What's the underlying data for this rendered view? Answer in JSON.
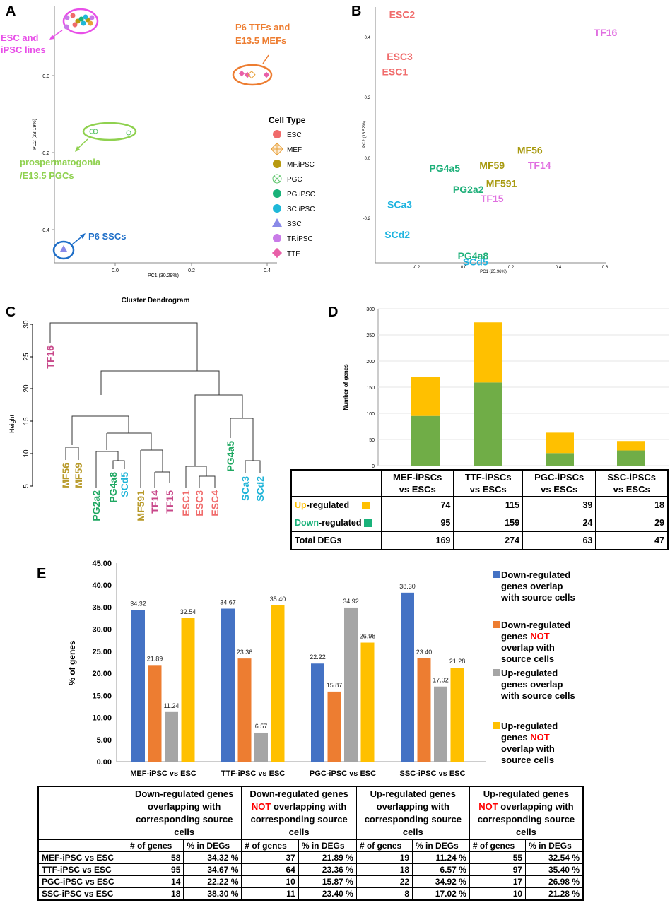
{
  "panels": {
    "a": "A",
    "b": "B",
    "c": "C",
    "d": "D",
    "e": "E"
  },
  "colors": {
    "esc": "#f06b6b",
    "mef": "#e8a03a",
    "mfipsc": "#b89a10",
    "pgc": "#5cc46a",
    "pgipsc": "#19b27a",
    "scipsc": "#1fb8d8",
    "ssc": "#8a8ae8",
    "tfipsc": "#c97be8",
    "ttf": "#e85fa8",
    "up": "#ffc000",
    "down": "#70ad47",
    "blue": "#4472c4",
    "orange": "#ed7d31",
    "gray": "#a5a5a5",
    "yellow": "#ffc000"
  },
  "panelA": {
    "xlabel": "PC1 (30.29%)",
    "ylabel": "PC2 (23.19%)",
    "xticks": [
      "0.0",
      "0.2",
      "0.4"
    ],
    "yticks": [
      "0.0",
      "-0.2",
      "-0.4"
    ],
    "ann_esc_l1": "ESC and",
    "ann_esc_l2": "iPSC lines",
    "ann_p6_l1": "P6 TTFs and",
    "ann_p6_l2": "E13.5 MEFs",
    "ann_pro_l1": "prospermatogonia",
    "ann_pro_l2": "/E13.5 PGCs",
    "ann_ssc": "P6 SSCs",
    "legend_title": "Cell Type",
    "legend": [
      "ESC",
      "MEF",
      "MF.iPSC",
      "PGC",
      "PG.iPSC",
      "SC.iPSC",
      "SSC",
      "TF.iPSC",
      "TTF"
    ]
  },
  "panelB": {
    "xlabel": "PC1 (25.96%)",
    "ylabel": "PC2 (13.52%)",
    "xticks": [
      "-0.2",
      "0.0",
      "0.2",
      "0.4",
      "0.6"
    ],
    "yticks": [
      "0.4",
      "0.2",
      "0.0",
      "-0.2"
    ],
    "labels": [
      {
        "t": "ESC2",
        "x": -0.26,
        "y": 0.47,
        "g": "esc"
      },
      {
        "t": "ESC3",
        "x": -0.27,
        "y": 0.33,
        "g": "esc"
      },
      {
        "t": "ESC1",
        "x": -0.29,
        "y": 0.28,
        "g": "esc"
      },
      {
        "t": "TF16",
        "x": 0.6,
        "y": 0.41,
        "g": "tf"
      },
      {
        "t": "MF56",
        "x": 0.28,
        "y": 0.02,
        "g": "mf"
      },
      {
        "t": "TF14",
        "x": 0.32,
        "y": -0.03,
        "g": "tf"
      },
      {
        "t": "MF59",
        "x": 0.12,
        "y": -0.03,
        "g": "mf"
      },
      {
        "t": "PG4a5",
        "x": -0.08,
        "y": -0.04,
        "g": "pg"
      },
      {
        "t": "MF591",
        "x": 0.16,
        "y": -0.09,
        "g": "mf"
      },
      {
        "t": "PG2a2",
        "x": 0.02,
        "y": -0.11,
        "g": "pg"
      },
      {
        "t": "TF15",
        "x": 0.12,
        "y": -0.14,
        "g": "tf"
      },
      {
        "t": "SCa3",
        "x": -0.27,
        "y": -0.16,
        "g": "sc"
      },
      {
        "t": "SCd2",
        "x": -0.28,
        "y": -0.26,
        "g": "sc"
      },
      {
        "t": "PG4a8",
        "x": 0.04,
        "y": -0.33,
        "g": "pg"
      },
      {
        "t": "SCd5",
        "x": 0.05,
        "y": -0.35,
        "g": "sc"
      }
    ]
  },
  "panelC": {
    "title": "Cluster Dendrogram",
    "ylabel": "Height",
    "yticks": [
      "5",
      "10",
      "15",
      "20",
      "25",
      "30"
    ],
    "leaves": [
      {
        "t": "TF16",
        "g": "tf"
      },
      {
        "t": "MF56",
        "g": "mf"
      },
      {
        "t": "MF59",
        "g": "mf"
      },
      {
        "t": "PG2a2",
        "g": "pg"
      },
      {
        "t": "PG4a8",
        "g": "pg"
      },
      {
        "t": "SCd5",
        "g": "sc"
      },
      {
        "t": "MF591",
        "g": "mf"
      },
      {
        "t": "TF14",
        "g": "tf"
      },
      {
        "t": "TF15",
        "g": "tf"
      },
      {
        "t": "ESC1",
        "g": "esc"
      },
      {
        "t": "ESC3",
        "g": "esc"
      },
      {
        "t": "ESC4",
        "g": "esc"
      },
      {
        "t": "PG4a5",
        "g": "pg"
      },
      {
        "t": "SCa3",
        "g": "sc"
      },
      {
        "t": "SCd2",
        "g": "sc"
      }
    ]
  },
  "chart_data": [
    {
      "type": "bar",
      "stacked": true,
      "title": "",
      "ylabel": "Number of genes",
      "ylim": [
        0,
        300
      ],
      "yticks": [
        "0",
        "50",
        "100",
        "150",
        "200",
        "250",
        "300"
      ],
      "categories": [
        "MEF-iPSCs vs ESCs",
        "TTF-iPSCs vs ESCs",
        "PGC-iPSCs vs ESCs",
        "SSC-iPSCs vs ESCs"
      ],
      "series": [
        {
          "name": "Down-regulated",
          "values": [
            95,
            159,
            24,
            29
          ]
        },
        {
          "name": "Up-regulated",
          "values": [
            74,
            115,
            39,
            18
          ]
        }
      ]
    },
    {
      "type": "bar",
      "ylabel": "% of genes",
      "ylim": [
        0,
        45
      ],
      "yticks": [
        "0.00",
        "5.00",
        "10.00",
        "15.00",
        "20.00",
        "25.00",
        "30.00",
        "35.00",
        "40.00",
        "45.00"
      ],
      "categories": [
        "MEF-iPSC vs ESC",
        "TTF-iPSC vs ESC",
        "PGC-iPSC vs ESC",
        "SSC-iPSC vs ESC"
      ],
      "series": [
        {
          "name": "Down-regulated genes overlap with source cells",
          "values": [
            34.32,
            34.67,
            22.22,
            38.3
          ],
          "labels": [
            "34.32",
            "34.67",
            "22.22",
            "38.30"
          ]
        },
        {
          "name": "Down-regulated genes NOT overlap with source cells",
          "values": [
            21.89,
            23.36,
            15.87,
            23.4
          ],
          "labels": [
            "21.89",
            "23.36",
            "15.87",
            "23.40"
          ]
        },
        {
          "name": "Up-regulated genes overlap with source cells",
          "values": [
            11.24,
            6.57,
            34.92,
            17.02
          ],
          "labels": [
            "11.24",
            "6.57",
            "34.92",
            "17.02"
          ]
        },
        {
          "name": "Up-regulated genes NOT overlap with source cells",
          "values": [
            32.54,
            35.4,
            26.98,
            21.28
          ],
          "labels": [
            "32.54",
            "35.40",
            "26.98",
            "21.28"
          ]
        }
      ]
    }
  ],
  "tableD": {
    "headers": [
      [
        "MEF-iPSCs",
        "vs ESCs"
      ],
      [
        "TTF-iPSCs",
        "vs ESCs"
      ],
      [
        "PGC-iPSCs",
        "vs ESCs"
      ],
      [
        "SSC-iPSCs",
        "vs ESCs"
      ]
    ],
    "up_a": "Up",
    "up_b": "-regulated",
    "down_a": "Down",
    "down_b": "-regulated",
    "total": "Total DEGs",
    "up": [
      "74",
      "115",
      "39",
      "18"
    ],
    "down": [
      "95",
      "159",
      "24",
      "29"
    ],
    "totals": [
      "169",
      "274",
      "63",
      "47"
    ]
  },
  "legendE": {
    "l1": [
      "Down-regulated",
      "genes overlap",
      "with source cells"
    ],
    "l2a": "Down-regulated",
    "l2b": "genes ",
    "l2not": "NOT",
    "l2c": "overlap with",
    "l2d": "source cells",
    "l3": [
      "Up-regulated",
      "genes overlap",
      "with source cells"
    ],
    "l4a": "Up-regulated",
    "l4b": "genes ",
    "l4not": "NOT",
    "l4c": "overlap with",
    "l4d": "source cells"
  },
  "tableE": {
    "h1": [
      "Down-regulated genes",
      "overlapping with",
      "corresponding source",
      "cells"
    ],
    "h2a": "Down-regulated genes",
    "h2not": "NOT",
    "h2b": " overlapping with",
    "h2c": "corresponding source",
    "h2d": "cells",
    "h3": [
      "Up-regulated genes",
      "overlapping with",
      "corresponding source",
      "cells"
    ],
    "h4a": "Up-regulated genes",
    "h4not": "NOT",
    "h4b": " overlapping with",
    "h4c": "corresponding source",
    "h4d": "cells",
    "sub_n": "# of genes",
    "sub_p": "% in DEGs",
    "rows": [
      {
        "name": "MEF-iPSC vs ESC",
        "v": [
          "58",
          "34.32 %",
          "37",
          "21.89 %",
          "19",
          "11.24 %",
          "55",
          "32.54 %"
        ]
      },
      {
        "name": "TTF-iPSC vs ESC",
        "v": [
          "95",
          "34.67 %",
          "64",
          "23.36 %",
          "18",
          "6.57 %",
          "97",
          "35.40 %"
        ]
      },
      {
        "name": "PGC-iPSC vs ESC",
        "v": [
          "14",
          "22.22 %",
          "10",
          "15.87 %",
          "22",
          "34.92 %",
          "17",
          "26.98 %"
        ]
      },
      {
        "name": "SSC-iPSC vs ESC",
        "v": [
          "18",
          "38.30 %",
          "11",
          "23.40 %",
          "8",
          "17.02 %",
          "10",
          "21.28 %"
        ]
      }
    ]
  }
}
